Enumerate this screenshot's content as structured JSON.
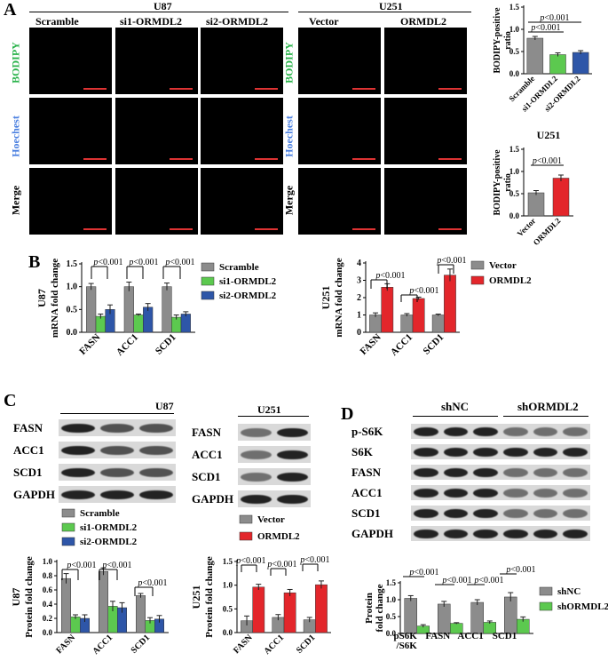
{
  "panels": {
    "A": "A",
    "B": "B",
    "C": "C",
    "D": "D"
  },
  "panelA": {
    "u87_title": "U87",
    "u251_title": "U251",
    "u87_cols": [
      "Scramble",
      "si1-ORMDL2",
      "si2-ORMDL2"
    ],
    "u251_cols": [
      "Vector",
      "ORMDL2"
    ],
    "rows": [
      "BODIPY",
      "Hoechest",
      "Merge"
    ],
    "row_colors": {
      "BODIPY": "#29b24a",
      "Hoechest": "#4a7fe0",
      "Merge": "#000000"
    }
  },
  "panelC": {
    "u87_title": "U87",
    "u251_title": "U251",
    "u87_proteins": [
      "FASN",
      "ACC1",
      "SCD1",
      "GAPDH"
    ],
    "u251_proteins": [
      "FASN",
      "ACC1",
      "SCD1",
      "GAPDH"
    ]
  },
  "panelD": {
    "groups": [
      "shNC",
      "shORMDL2"
    ],
    "proteins": [
      "p-S6K",
      "S6K",
      "FASN",
      "ACC1",
      "SCD1",
      "GAPDH"
    ]
  },
  "colors": {
    "gray": "#8c8c8c",
    "green": "#5cc94f",
    "blue": "#2e56a8",
    "red": "#e3262b"
  },
  "chart_data": [
    {
      "id": "A-U87-bodipy",
      "type": "bar",
      "title": "U87",
      "ylabel": "BODIPY-positive ratio",
      "ylim": [
        0,
        1.5
      ],
      "yticks": [
        0,
        0.5,
        1.0,
        1.5
      ],
      "categories": [
        "Scramble",
        "si1-ORMDL2",
        "si2-ORMDL2"
      ],
      "values": [
        0.8,
        0.43,
        0.48
      ],
      "errors": [
        0.04,
        0.04,
        0.04
      ],
      "colors": [
        "#8c8c8c",
        "#5cc94f",
        "#2e56a8"
      ],
      "annotations": [
        "p<0.001",
        "p<0.001"
      ]
    },
    {
      "id": "A-U251-bodipy",
      "type": "bar",
      "title": "U251",
      "ylabel": "BODIPY-positive ratio",
      "ylim": [
        0,
        1.5
      ],
      "yticks": [
        0,
        0.5,
        1.0,
        1.5
      ],
      "categories": [
        "Vector",
        "ORMDL2"
      ],
      "values": [
        0.52,
        0.85
      ],
      "errors": [
        0.05,
        0.07
      ],
      "colors": [
        "#8c8c8c",
        "#e3262b"
      ],
      "annotations": [
        "p<0.001"
      ]
    },
    {
      "id": "B-U87",
      "type": "bar",
      "title": "U87",
      "ylabel": "mRNA fold change",
      "ylim": [
        0,
        1.5
      ],
      "yticks": [
        0,
        0.5,
        1.0,
        1.5
      ],
      "categories": [
        "FASN",
        "ACC1",
        "SCD1"
      ],
      "series": [
        {
          "name": "Scramble",
          "values": [
            1.0,
            1.0,
            1.0
          ],
          "errors": [
            0.07,
            0.1,
            0.08
          ],
          "color": "#8c8c8c"
        },
        {
          "name": "si1-ORMDL2",
          "values": [
            0.35,
            0.38,
            0.33
          ],
          "errors": [
            0.05,
            0.02,
            0.05
          ],
          "color": "#5cc94f"
        },
        {
          "name": "si2-ORMDL2",
          "values": [
            0.5,
            0.55,
            0.4
          ],
          "errors": [
            0.1,
            0.08,
            0.05
          ],
          "color": "#2e56a8"
        }
      ],
      "annotations": [
        "p<0.001",
        "p<0.001",
        "p<0.001"
      ]
    },
    {
      "id": "B-U251",
      "type": "bar",
      "title": "U251",
      "ylabel": "mRNA fold change",
      "ylim": [
        0,
        4
      ],
      "yticks": [
        0,
        1,
        2,
        3,
        4
      ],
      "categories": [
        "FASN",
        "ACC1",
        "SCD1"
      ],
      "series": [
        {
          "name": "Vector",
          "values": [
            1.0,
            1.0,
            1.0
          ],
          "errors": [
            0.12,
            0.08,
            0.05
          ],
          "color": "#8c8c8c"
        },
        {
          "name": "ORMDL2",
          "values": [
            2.6,
            1.95,
            3.3
          ],
          "errors": [
            0.2,
            0.08,
            0.35
          ],
          "color": "#e3262b"
        }
      ],
      "annotations": [
        "p<0.001",
        "p<0.001",
        "p<0.001"
      ]
    },
    {
      "id": "C-U87",
      "type": "bar",
      "title": "U87",
      "ylabel": "Protein fold change",
      "ylim": [
        0,
        1.0
      ],
      "yticks": [
        0,
        0.2,
        0.4,
        0.6,
        0.8,
        1.0
      ],
      "categories": [
        "FASN",
        "ACC1",
        "SCD1"
      ],
      "series": [
        {
          "name": "Scramble",
          "values": [
            0.76,
            0.86,
            0.52
          ],
          "errors": [
            0.07,
            0.05,
            0.03
          ],
          "color": "#8c8c8c"
        },
        {
          "name": "si1-ORMDL2",
          "values": [
            0.22,
            0.37,
            0.17
          ],
          "errors": [
            0.03,
            0.07,
            0.04
          ],
          "color": "#5cc94f"
        },
        {
          "name": "si2-ORMDL2",
          "values": [
            0.2,
            0.35,
            0.19
          ],
          "errors": [
            0.05,
            0.07,
            0.05
          ],
          "color": "#2e56a8"
        }
      ],
      "annotations": [
        "p<0.001",
        "p<0.001",
        "p<0.001"
      ]
    },
    {
      "id": "C-U251",
      "type": "bar",
      "title": "U251",
      "ylabel": "Protein fold change",
      "ylim": [
        0,
        1.5
      ],
      "yticks": [
        0,
        0.5,
        1.0,
        1.5
      ],
      "categories": [
        "FASN",
        "ACC1",
        "SCD1"
      ],
      "series": [
        {
          "name": "Vector",
          "values": [
            0.25,
            0.32,
            0.27
          ],
          "errors": [
            0.1,
            0.06,
            0.05
          ],
          "color": "#8c8c8c"
        },
        {
          "name": "ORMDL2",
          "values": [
            0.96,
            0.84,
            1.01
          ],
          "errors": [
            0.06,
            0.07,
            0.08
          ],
          "color": "#e3262b"
        }
      ],
      "annotations": [
        "p<0.001",
        "p<0.001",
        "p<0.001"
      ]
    },
    {
      "id": "D",
      "type": "bar",
      "title": "",
      "ylabel": "Protein fold change",
      "ylim": [
        0,
        1.5
      ],
      "yticks": [
        0,
        0.5,
        1.0,
        1.5
      ],
      "categories": [
        "pS6K /S6K",
        "FASN",
        "ACC1",
        "SCD1"
      ],
      "series": [
        {
          "name": "shNC",
          "values": [
            1.04,
            0.87,
            0.92,
            1.08
          ],
          "errors": [
            0.08,
            0.08,
            0.08,
            0.13
          ],
          "color": "#8c8c8c"
        },
        {
          "name": "shORMDL2",
          "values": [
            0.22,
            0.3,
            0.33,
            0.42
          ],
          "errors": [
            0.04,
            0.02,
            0.04,
            0.07
          ],
          "color": "#5cc94f"
        }
      ],
      "annotations": [
        "p<0.001",
        "p<0.001",
        "p<0.001",
        "p<0.001"
      ]
    }
  ]
}
